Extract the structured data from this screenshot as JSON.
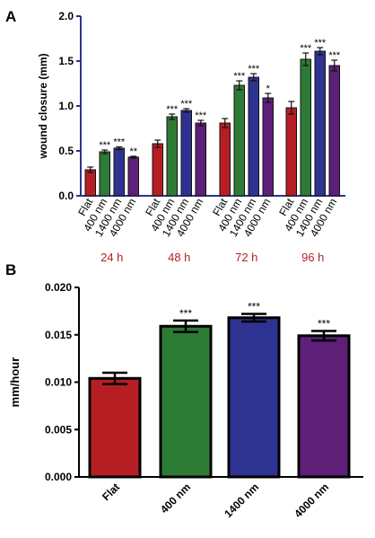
{
  "chart_data": [
    {
      "panel": "A",
      "type": "bar",
      "ylabel": "wound closure (mm)",
      "ylim": [
        0,
        2.0
      ],
      "yticks": [
        "0.0",
        "0.5",
        "1.0",
        "1.5",
        "2.0"
      ],
      "group_tick_labels": [
        "Flat",
        "400 nm",
        "1400 nm",
        "4000 nm"
      ],
      "groups": [
        {
          "label": "24 h",
          "values": [
            0.29,
            0.49,
            0.53,
            0.43
          ],
          "errors": [
            0.03,
            0.02,
            0.015,
            0.01
          ],
          "sig": [
            "",
            "***",
            "***",
            "**"
          ]
        },
        {
          "label": "48 h",
          "values": [
            0.58,
            0.88,
            0.95,
            0.81
          ],
          "errors": [
            0.04,
            0.03,
            0.02,
            0.03
          ],
          "sig": [
            "",
            "***",
            "***",
            "***"
          ]
        },
        {
          "label": "72 h",
          "values": [
            0.81,
            1.23,
            1.32,
            1.09
          ],
          "errors": [
            0.05,
            0.05,
            0.04,
            0.05
          ],
          "sig": [
            "",
            "***",
            "***",
            "*"
          ]
        },
        {
          "label": "96 h",
          "values": [
            0.98,
            1.52,
            1.61,
            1.45
          ],
          "errors": [
            0.07,
            0.07,
            0.04,
            0.06
          ],
          "sig": [
            "",
            "***",
            "***",
            "***"
          ]
        }
      ],
      "grid": false
    },
    {
      "panel": "B",
      "type": "bar",
      "ylabel": "mm/hour",
      "ylim": [
        0,
        0.02
      ],
      "yticks": [
        "0.000",
        "0.005",
        "0.010",
        "0.015",
        "0.020"
      ],
      "categories": [
        "Flat",
        "400 nm",
        "1400 nm",
        "4000 nm"
      ],
      "values": [
        0.0104,
        0.0159,
        0.0168,
        0.0149
      ],
      "errors": [
        0.0006,
        0.0006,
        0.0004,
        0.0005
      ],
      "sig": [
        "",
        "***",
        "***",
        "***"
      ],
      "grid": false
    }
  ],
  "colors": {
    "flat": "#b51f24",
    "n400": "#2e7b36",
    "n1400": "#2e3391",
    "n4000": "#5e2079",
    "axisA": "#2e3192",
    "time_label": "#b51f24"
  }
}
